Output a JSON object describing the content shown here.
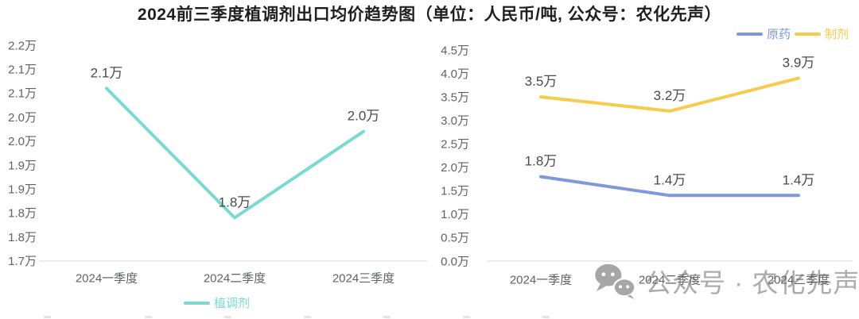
{
  "title": "2024前三季度植调剂出口均价趋势图（单位：人民币/吨, 公众号：农化先声）",
  "watermark": {
    "text": "公众号 · 农化先声",
    "icon": "wechat-chat-bubbles-icon"
  },
  "chart_data": [
    {
      "type": "line",
      "categories": [
        "2024一季度",
        "2024二季度",
        "2024三季度"
      ],
      "series": [
        {
          "name": "植调剂",
          "color": "#7cd9d2",
          "values": [
            2.1,
            1.8,
            2.0
          ],
          "point_labels": [
            "2.1万",
            "1.8万",
            "2.0万"
          ]
        }
      ],
      "ylim": [
        1.7,
        2.2
      ],
      "y_tick_labels": [
        "2.2万",
        "2.1万",
        "2.1万",
        "2.0万",
        "2.0万",
        "1.9万",
        "1.9万",
        "1.8万",
        "1.8万",
        "1.7万"
      ],
      "legend_position": "bottom",
      "grid": false
    },
    {
      "type": "line",
      "categories": [
        "2024一季度",
        "2024二季度",
        "2024三季度"
      ],
      "series": [
        {
          "name": "原药",
          "color": "#7f97db",
          "values": [
            1.8,
            1.4,
            1.4
          ],
          "point_labels": [
            "1.8万",
            "1.4万",
            "1.4万"
          ]
        },
        {
          "name": "制剂",
          "color": "#f7cb4e",
          "values": [
            3.5,
            3.2,
            3.9
          ],
          "point_labels": [
            "3.5万",
            "3.2万",
            "3.9万"
          ]
        }
      ],
      "ylim": [
        0,
        4.5
      ],
      "y_tick_labels": [
        "4.5万",
        "4.0万",
        "3.5万",
        "3.0万",
        "2.5万",
        "2.0万",
        "1.5万",
        "1.0万",
        "0.5万",
        "0.0万"
      ],
      "legend_position": "top-right",
      "grid": false
    }
  ]
}
